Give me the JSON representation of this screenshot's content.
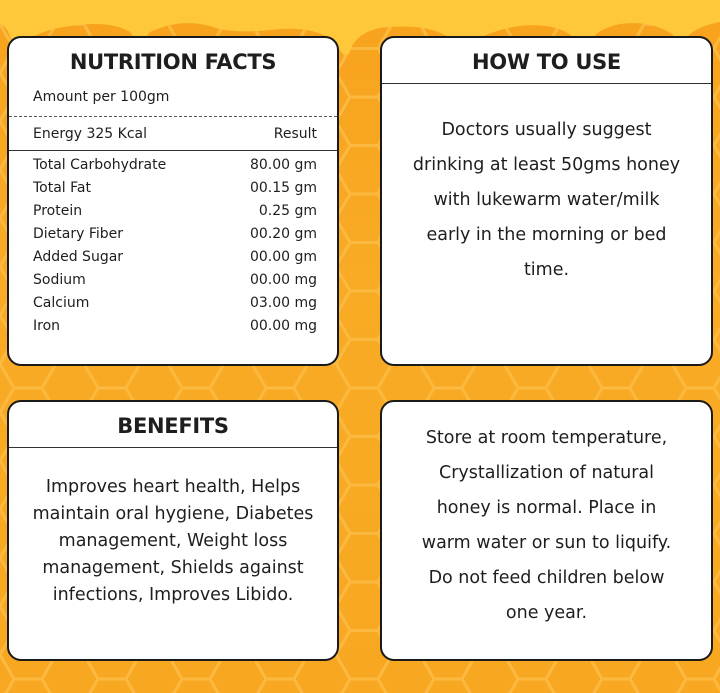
{
  "nutrition": {
    "title": "NUTRITION FACTS",
    "amount_label": "Amount per 100gm",
    "header_left": "Energy 325 Kcal",
    "header_right": "Result",
    "rows": [
      {
        "name": "Total Carbohydrate",
        "value": "80.00 gm"
      },
      {
        "name": "Total Fat",
        "value": "00.15 gm"
      },
      {
        "name": "Protein",
        "value": "0.25 gm"
      },
      {
        "name": "Dietary Fiber",
        "value": "00.20 gm"
      },
      {
        "name": "Added Sugar",
        "value": "00.00 gm"
      },
      {
        "name": "Sodium",
        "value": "00.00 mg"
      },
      {
        "name": "Calcium",
        "value": "03.00 mg"
      },
      {
        "name": "Iron",
        "value": "00.00 mg"
      }
    ]
  },
  "how_to_use": {
    "title": "HOW TO USE",
    "lines": [
      "Doctors usually suggest",
      "drinking at least 50gms honey",
      "with lukewarm water/milk",
      "early in the morning or bed",
      "time."
    ]
  },
  "benefits": {
    "title": "BENEFITS",
    "lines": [
      "Improves heart health, Helps",
      "maintain oral hygiene, Diabetes",
      "management, Weight loss",
      "management, Shields against",
      "infections, Improves Libido."
    ]
  },
  "storage": {
    "lines": [
      "Store at room temperature,",
      "Crystallization of natural",
      "honey is normal. Place in",
      "warm water or sun to liquify.",
      "Do not feed children below",
      "one year."
    ]
  },
  "colors": {
    "background": "#f8a820",
    "honeycomb": "#fbb940",
    "drip": "#ffc83a",
    "card": "#ffffff",
    "border": "#1a1a1a"
  }
}
